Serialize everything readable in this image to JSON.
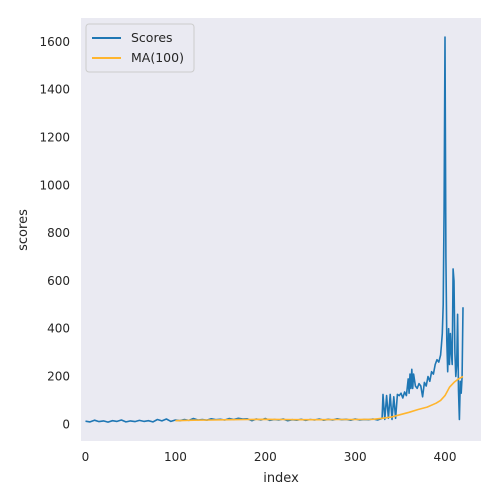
{
  "chart_data": {
    "type": "line",
    "xlabel": "index",
    "ylabel": "scores",
    "xlim": [
      -5,
      440
    ],
    "ylim": [
      -70,
      1700
    ],
    "x_ticks": [
      0,
      100,
      200,
      300,
      400
    ],
    "y_ticks": [
      0,
      200,
      400,
      600,
      800,
      1000,
      1200,
      1400,
      1600
    ],
    "grid": false,
    "background": "#eaeaf2",
    "legend_placement": "top-left",
    "series": [
      {
        "name": "Scores",
        "color": "#1f77b4",
        "points": [
          [
            0,
            13
          ],
          [
            5,
            10
          ],
          [
            10,
            17
          ],
          [
            15,
            11
          ],
          [
            20,
            14
          ],
          [
            25,
            9
          ],
          [
            30,
            15
          ],
          [
            35,
            12
          ],
          [
            40,
            18
          ],
          [
            45,
            10
          ],
          [
            50,
            14
          ],
          [
            55,
            11
          ],
          [
            60,
            16
          ],
          [
            65,
            12
          ],
          [
            70,
            15
          ],
          [
            75,
            10
          ],
          [
            80,
            20
          ],
          [
            85,
            14
          ],
          [
            90,
            22
          ],
          [
            95,
            12
          ],
          [
            100,
            18
          ],
          [
            105,
            15
          ],
          [
            110,
            20
          ],
          [
            115,
            16
          ],
          [
            120,
            24
          ],
          [
            125,
            18
          ],
          [
            130,
            20
          ],
          [
            135,
            17
          ],
          [
            140,
            23
          ],
          [
            145,
            19
          ],
          [
            150,
            21
          ],
          [
            155,
            18
          ],
          [
            160,
            24
          ],
          [
            165,
            20
          ],
          [
            170,
            25
          ],
          [
            175,
            22
          ],
          [
            180,
            23
          ],
          [
            185,
            15
          ],
          [
            190,
            22
          ],
          [
            195,
            18
          ],
          [
            200,
            24
          ],
          [
            205,
            16
          ],
          [
            210,
            20
          ],
          [
            215,
            18
          ],
          [
            220,
            22
          ],
          [
            225,
            15
          ],
          [
            230,
            19
          ],
          [
            235,
            17
          ],
          [
            240,
            21
          ],
          [
            245,
            16
          ],
          [
            250,
            20
          ],
          [
            255,
            18
          ],
          [
            260,
            22
          ],
          [
            265,
            17
          ],
          [
            270,
            21
          ],
          [
            275,
            18
          ],
          [
            280,
            23
          ],
          [
            285,
            19
          ],
          [
            290,
            21
          ],
          [
            295,
            17
          ],
          [
            300,
            22
          ],
          [
            305,
            18
          ],
          [
            310,
            20
          ],
          [
            315,
            19
          ],
          [
            320,
            22
          ],
          [
            325,
            18
          ],
          [
            330,
            25
          ],
          [
            331,
            125
          ],
          [
            333,
            20
          ],
          [
            335,
            120
          ],
          [
            337,
            25
          ],
          [
            339,
            125
          ],
          [
            341,
            20
          ],
          [
            343,
            115
          ],
          [
            345,
            25
          ],
          [
            347,
            125
          ],
          [
            349,
            120
          ],
          [
            351,
            130
          ],
          [
            353,
            110
          ],
          [
            355,
            135
          ],
          [
            357,
            120
          ],
          [
            359,
            190
          ],
          [
            360,
            130
          ],
          [
            361,
            210
          ],
          [
            362,
            150
          ],
          [
            363,
            230
          ],
          [
            364,
            150
          ],
          [
            365,
            210
          ],
          [
            367,
            160
          ],
          [
            369,
            150
          ],
          [
            371,
            170
          ],
          [
            373,
            160
          ],
          [
            375,
            115
          ],
          [
            377,
            175
          ],
          [
            379,
            160
          ],
          [
            381,
            200
          ],
          [
            383,
            180
          ],
          [
            385,
            220
          ],
          [
            387,
            210
          ],
          [
            389,
            250
          ],
          [
            391,
            270
          ],
          [
            393,
            260
          ],
          [
            395,
            290
          ],
          [
            396,
            330
          ],
          [
            397,
            380
          ],
          [
            398,
            500
          ],
          [
            399,
            900
          ],
          [
            400,
            1620
          ],
          [
            401,
            700
          ],
          [
            402,
            350
          ],
          [
            403,
            220
          ],
          [
            404,
            400
          ],
          [
            405,
            250
          ],
          [
            406,
            380
          ],
          [
            407,
            300
          ],
          [
            408,
            250
          ],
          [
            409,
            650
          ],
          [
            410,
            600
          ],
          [
            411,
            300
          ],
          [
            412,
            200
          ],
          [
            413,
            250
          ],
          [
            414,
            460
          ],
          [
            415,
            140
          ],
          [
            416,
            20
          ],
          [
            417,
            180
          ],
          [
            418,
            130
          ],
          [
            419,
            200
          ],
          [
            420,
            490
          ]
        ]
      },
      {
        "name": "MA(100)",
        "color": "#ffb52e",
        "points": [
          [
            100,
            15
          ],
          [
            120,
            17
          ],
          [
            140,
            18
          ],
          [
            160,
            19
          ],
          [
            180,
            20
          ],
          [
            200,
            21
          ],
          [
            220,
            20
          ],
          [
            240,
            19
          ],
          [
            260,
            19
          ],
          [
            280,
            20
          ],
          [
            300,
            20
          ],
          [
            320,
            21
          ],
          [
            330,
            25
          ],
          [
            340,
            30
          ],
          [
            350,
            40
          ],
          [
            360,
            50
          ],
          [
            370,
            62
          ],
          [
            380,
            72
          ],
          [
            390,
            88
          ],
          [
            395,
            100
          ],
          [
            400,
            120
          ],
          [
            405,
            155
          ],
          [
            410,
            175
          ],
          [
            415,
            190
          ],
          [
            420,
            200
          ]
        ]
      }
    ]
  }
}
